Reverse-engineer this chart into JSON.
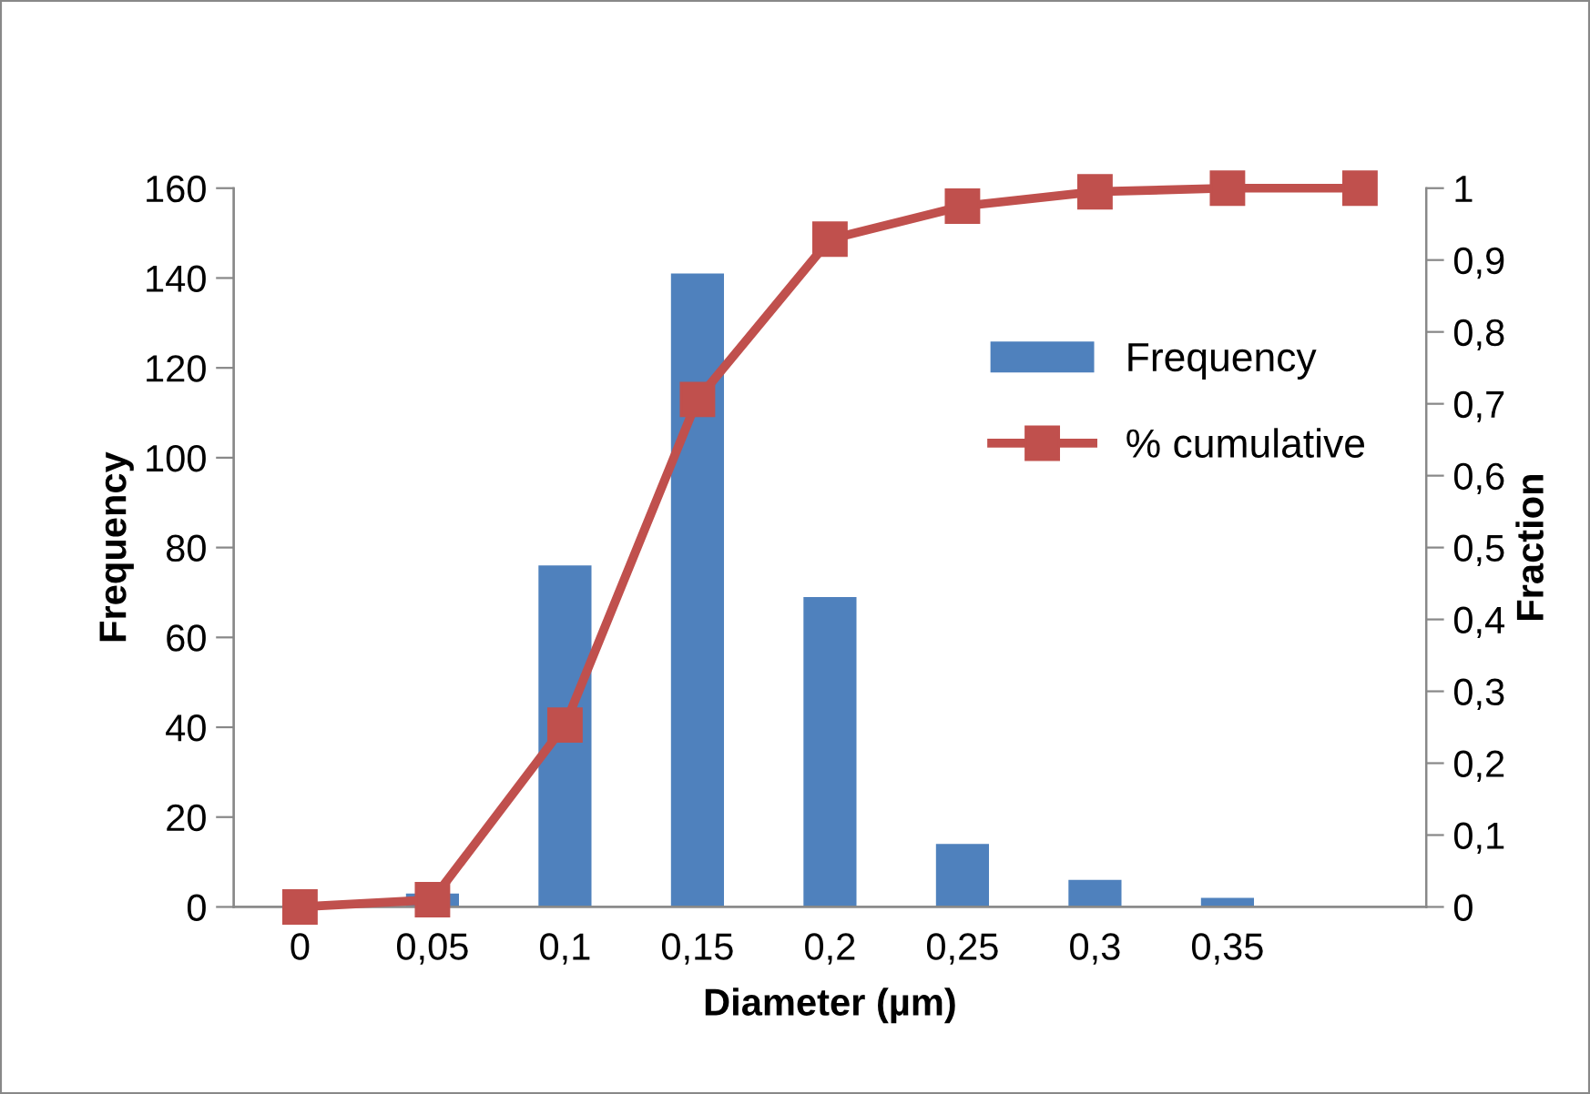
{
  "chart_data": {
    "type": "bar",
    "xlabel": "Diameter (µm)",
    "ylabel": "Frequency",
    "y2label": "Fraction",
    "categories": [
      "0",
      "0,05",
      "0,1",
      "0,15",
      "0,2",
      "0,25",
      "0,3",
      "0,35",
      null
    ],
    "series": [
      {
        "name": "Frequency",
        "color": "#4f81bd",
        "values": [
          0,
          3,
          76,
          141,
          69,
          14,
          6,
          2,
          0
        ]
      },
      {
        "name": "% cumulative",
        "type": "line",
        "axis": "y2",
        "color": "#c0504d",
        "marker": "square",
        "values": [
          0,
          0.01,
          0.253,
          0.706,
          0.929,
          0.975,
          0.995,
          1.0,
          1.0
        ]
      }
    ],
    "ylim": [
      0,
      160
    ],
    "yticks": [
      0,
      20,
      40,
      60,
      80,
      100,
      120,
      140,
      160
    ],
    "y2lim": [
      0,
      1
    ],
    "y2ticks": [
      0,
      {
        "value": 0.1,
        "label": "0,1"
      },
      {
        "value": 0.2,
        "label": "0,2"
      },
      {
        "value": 0.3,
        "label": "0,3"
      },
      {
        "value": 0.4,
        "label": "0,4"
      },
      {
        "value": 0.5,
        "label": "0,5"
      },
      {
        "value": 0.6,
        "label": "0,6"
      },
      {
        "value": 0.7,
        "label": "0,7"
      },
      {
        "value": 0.8,
        "label": "0,8"
      },
      {
        "value": 0.9,
        "label": "0,9"
      },
      1
    ],
    "grid": false,
    "legend": "right"
  }
}
